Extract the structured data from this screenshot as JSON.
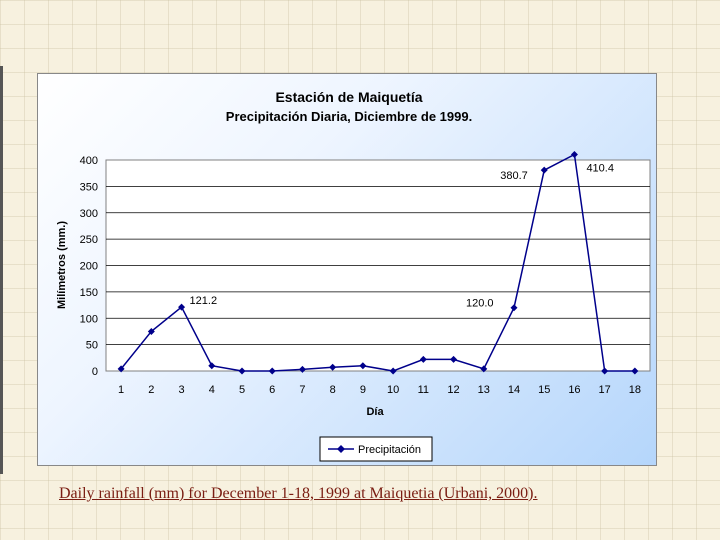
{
  "caption": "Daily rainfall (mm) for December 1-18, 1999 at Maiquetia (Urbani, 2000).",
  "chart_data": {
    "type": "line",
    "title": "Estación de Maiquetía",
    "subtitle": "Precipitación Diaria, Diciembre de 1999.",
    "xlabel": "Día",
    "ylabel": "Milímetros (mm.)",
    "categories": [
      "1",
      "2",
      "3",
      "4",
      "5",
      "6",
      "7",
      "8",
      "9",
      "10",
      "11",
      "12",
      "13",
      "14",
      "15",
      "16",
      "17",
      "18"
    ],
    "series": [
      {
        "name": "Precipitación",
        "values": [
          4,
          75,
          121.2,
          10,
          0,
          0,
          3,
          7,
          10,
          0,
          22,
          22,
          4,
          120.0,
          380.7,
          410.4,
          0,
          0
        ],
        "color": "#00008b"
      }
    ],
    "ylim": [
      0,
      400
    ],
    "yticks": [
      0,
      50,
      100,
      150,
      200,
      250,
      300,
      350,
      400
    ],
    "grid": true,
    "legend": "bottom-center",
    "data_labels": [
      {
        "index": 2,
        "text": "121.2"
      },
      {
        "index": 13,
        "text": "120.0"
      },
      {
        "index": 14,
        "text": "380.7"
      },
      {
        "index": 15,
        "text": "410.4"
      }
    ]
  }
}
